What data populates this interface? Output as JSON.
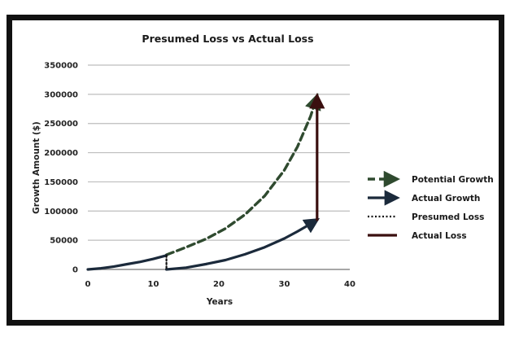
{
  "chart_data": {
    "type": "line",
    "title": "Presumed Loss vs Actual Loss",
    "xlabel": "Years",
    "ylabel": "Growth Amount ($)",
    "xlim": [
      0,
      40
    ],
    "ylim": [
      0,
      350000
    ],
    "x_ticks": [
      "0",
      "10",
      "20",
      "30",
      "40"
    ],
    "y_ticks": [
      "0",
      "50000",
      "100000",
      "150000",
      "200000",
      "250000",
      "300000",
      "350000"
    ],
    "grid": "horizontal",
    "legend_position": "right",
    "series": [
      {
        "name": "Potential Growth",
        "style": "dashed-arrow",
        "color": "#2f4a2f",
        "x": [
          12,
          15,
          18,
          21,
          24,
          27,
          30,
          32,
          34,
          35
        ],
        "y": [
          25000,
          38000,
          52000,
          70000,
          94000,
          126000,
          170000,
          210000,
          262000,
          297000
        ]
      },
      {
        "name": "Actual Growth",
        "style": "solid-arrow",
        "color": "#1b2a3b",
        "x": [
          0,
          2,
          4,
          6,
          8,
          10,
          12,
          12,
          15,
          18,
          21,
          24,
          27,
          30,
          32,
          34,
          35
        ],
        "y": [
          0,
          2000,
          5000,
          9000,
          13000,
          18000,
          24000,
          0,
          3000,
          9000,
          16000,
          26000,
          38000,
          53000,
          65000,
          78000,
          85000
        ]
      },
      {
        "name": "Presumed Loss",
        "style": "dotted",
        "color": "#111111",
        "x": [
          12,
          12
        ],
        "y": [
          24000,
          0
        ]
      },
      {
        "name": "Actual Loss",
        "style": "solid-arrow",
        "color": "#3a0f0f",
        "x": [
          35,
          35
        ],
        "y": [
          85000,
          297000
        ]
      }
    ]
  }
}
